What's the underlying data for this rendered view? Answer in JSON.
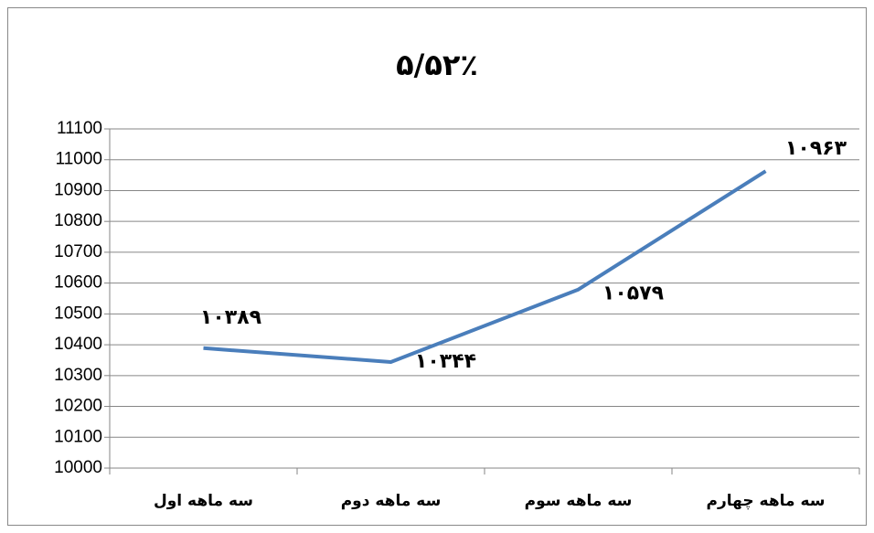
{
  "chart_data": {
    "type": "line",
    "title": "۵/۵۲٪",
    "categories": [
      "سه ماهه اول",
      "سه ماهه دوم",
      "سه ماهه سوم",
      "سه ماهه چهارم"
    ],
    "series": [
      {
        "color": "#4a7ebb",
        "values": [
          10389,
          10344,
          10579,
          10963
        ],
        "value_labels": [
          "۱۰۳۸۹",
          "۱۰۳۴۴",
          "۱۰۵۷۹",
          "۱۰۹۶۳"
        ]
      }
    ],
    "ylim": [
      10000,
      11100
    ],
    "yticks": [
      10000,
      10100,
      10200,
      10300,
      10400,
      10500,
      10600,
      10700,
      10800,
      10900,
      11000,
      11100
    ],
    "grid": true
  }
}
